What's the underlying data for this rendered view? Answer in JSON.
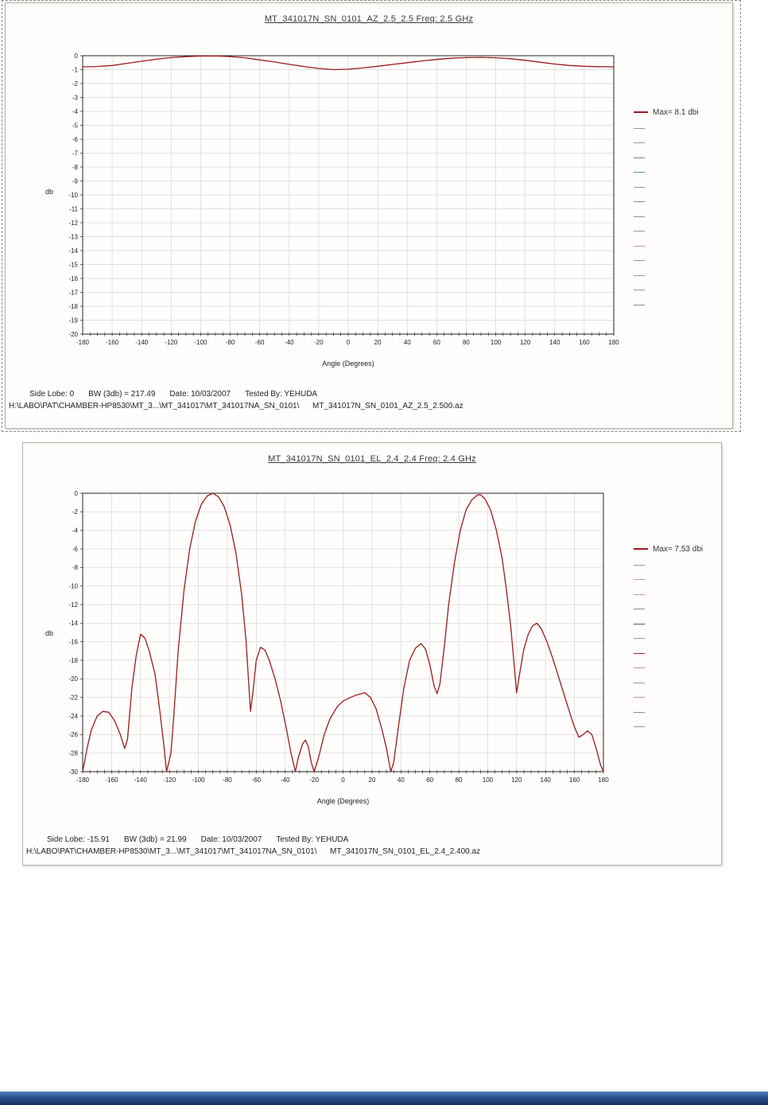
{
  "chart_data": [
    {
      "type": "line",
      "title": "MT_341017N_SN_0101_AZ_2.5_2.5 Freq: 2.5 GHz",
      "xlabel": "Angle (Degrees)",
      "ylabel": "db",
      "xlim": [
        -180,
        180
      ],
      "xstep": 20,
      "ylim": [
        -20,
        0
      ],
      "ystep": 1,
      "grid": true,
      "line_color": "#9b1b1b",
      "legend": {
        "label": "Max= 8.1 dbi",
        "color": "#9b1b1b",
        "extra_colors": [
          "#8899aa",
          "#999999",
          "#888888",
          "#5f93a8",
          "#999999",
          "#8a8a8a",
          "#7a9ab8",
          "#9a9a9a",
          "#c492b8",
          "#8899aa",
          "#7a9ab8",
          "#999999",
          "#888888"
        ]
      },
      "series": [
        {
          "name": "Max= 8.1 dbi",
          "points": [
            [
              -180,
              -0.8
            ],
            [
              -170,
              -0.78
            ],
            [
              -160,
              -0.7
            ],
            [
              -150,
              -0.55
            ],
            [
              -140,
              -0.4
            ],
            [
              -130,
              -0.25
            ],
            [
              -120,
              -0.14
            ],
            [
              -110,
              -0.07
            ],
            [
              -100,
              -0.03
            ],
            [
              -90,
              -0.02
            ],
            [
              -80,
              -0.06
            ],
            [
              -70,
              -0.15
            ],
            [
              -60,
              -0.3
            ],
            [
              -50,
              -0.45
            ],
            [
              -40,
              -0.62
            ],
            [
              -30,
              -0.78
            ],
            [
              -20,
              -0.92
            ],
            [
              -10,
              -1.0
            ],
            [
              0,
              -0.97
            ],
            [
              10,
              -0.88
            ],
            [
              20,
              -0.76
            ],
            [
              30,
              -0.63
            ],
            [
              40,
              -0.5
            ],
            [
              50,
              -0.38
            ],
            [
              60,
              -0.27
            ],
            [
              70,
              -0.18
            ],
            [
              80,
              -0.14
            ],
            [
              90,
              -0.12
            ],
            [
              100,
              -0.15
            ],
            [
              110,
              -0.22
            ],
            [
              120,
              -0.33
            ],
            [
              130,
              -0.47
            ],
            [
              140,
              -0.6
            ],
            [
              150,
              -0.7
            ],
            [
              160,
              -0.76
            ],
            [
              170,
              -0.79
            ],
            [
              180,
              -0.8
            ]
          ]
        }
      ],
      "footer": {
        "side_lobe": "Side Lobe:  0",
        "bw": "BW (3db) =  217.49",
        "date": "Date: 10/03/2007",
        "tested_by": "Tested By: YEHUDA",
        "path": "H:\\LABO\\PAT\\CHAMBER-HP8530\\MT_3...\\MT_341017\\MT_341017NA_SN_0101\\      MT_341017N_SN_0101_AZ_2.5_2.500.az"
      }
    },
    {
      "type": "line",
      "title": "MT_341017N_SN_0101_EL_2.4_2.4 Freq: 2.4 GHz",
      "xlabel": "Angle (Degrees)",
      "ylabel": "db",
      "xlim": [
        -180,
        180
      ],
      "xstep": 20,
      "ylim": [
        -30,
        0
      ],
      "ystep": 2,
      "grid": true,
      "line_color": "#9b1b1b",
      "legend": {
        "label": "Max= 7.53 dbi",
        "color": "#9b1b1b",
        "extra_colors": [
          "#9a9a9a",
          "#c08cc0",
          "#c492b8",
          "#8a8a8a",
          "#555555",
          "#999999",
          "#a02020",
          "#c492b8",
          "#9a9a9a",
          "#b890c0",
          "#8a8a8a",
          "#999999"
        ]
      },
      "series": [
        {
          "name": "Max= 7.53 dbi",
          "points": [
            [
              -180,
              -30
            ],
            [
              -177,
              -27.5
            ],
            [
              -174,
              -25.5
            ],
            [
              -170,
              -24
            ],
            [
              -166,
              -23.5
            ],
            [
              -162,
              -23.6
            ],
            [
              -158,
              -24.5
            ],
            [
              -154,
              -26
            ],
            [
              -151,
              -27.5
            ],
            [
              -149,
              -26.5
            ],
            [
              -146,
              -21
            ],
            [
              -143,
              -17.5
            ],
            [
              -140,
              -15.2
            ],
            [
              -137,
              -15.6
            ],
            [
              -134,
              -17
            ],
            [
              -130,
              -19.5
            ],
            [
              -127,
              -23
            ],
            [
              -124,
              -27
            ],
            [
              -122,
              -30
            ],
            [
              -119,
              -28
            ],
            [
              -117,
              -24
            ],
            [
              -114,
              -17
            ],
            [
              -110,
              -10.5
            ],
            [
              -106,
              -6
            ],
            [
              -102,
              -3
            ],
            [
              -98,
              -1.2
            ],
            [
              -94,
              -0.3
            ],
            [
              -90,
              0
            ],
            [
              -86,
              -0.4
            ],
            [
              -82,
              -1.5
            ],
            [
              -78,
              -3.5
            ],
            [
              -74,
              -6.5
            ],
            [
              -70,
              -11
            ],
            [
              -67,
              -16
            ],
            [
              -65,
              -21
            ],
            [
              -64,
              -23.5
            ],
            [
              -62,
              -21
            ],
            [
              -60,
              -18
            ],
            [
              -57,
              -16.6
            ],
            [
              -54,
              -16.9
            ],
            [
              -51,
              -18
            ],
            [
              -47,
              -20
            ],
            [
              -43,
              -22.5
            ],
            [
              -39,
              -25.5
            ],
            [
              -36,
              -28
            ],
            [
              -33,
              -30
            ],
            [
              -31,
              -28.5
            ],
            [
              -28,
              -27
            ],
            [
              -26,
              -26.6
            ],
            [
              -24,
              -27.3
            ],
            [
              -22,
              -29
            ],
            [
              -20,
              -30
            ],
            [
              -17,
              -28.5
            ],
            [
              -13,
              -26
            ],
            [
              -9,
              -24.3
            ],
            [
              -4,
              -23
            ],
            [
              0,
              -22.4
            ],
            [
              5,
              -22
            ],
            [
              10,
              -21.7
            ],
            [
              15,
              -21.5
            ],
            [
              19,
              -22
            ],
            [
              23,
              -23.3
            ],
            [
              27,
              -25.5
            ],
            [
              30,
              -27.5
            ],
            [
              33,
              -30
            ],
            [
              35,
              -29
            ],
            [
              38,
              -25.5
            ],
            [
              42,
              -21
            ],
            [
              46,
              -18
            ],
            [
              50,
              -16.7
            ],
            [
              54,
              -16.2
            ],
            [
              57,
              -16.8
            ],
            [
              60,
              -18.5
            ],
            [
              63,
              -20.8
            ],
            [
              65,
              -21.6
            ],
            [
              67,
              -20.5
            ],
            [
              70,
              -16.5
            ],
            [
              73,
              -12
            ],
            [
              77,
              -7.5
            ],
            [
              81,
              -4
            ],
            [
              85,
              -1.8
            ],
            [
              89,
              -0.7
            ],
            [
              93,
              -0.2
            ],
            [
              95,
              -0.15
            ],
            [
              98,
              -0.6
            ],
            [
              102,
              -1.8
            ],
            [
              106,
              -4
            ],
            [
              110,
              -7
            ],
            [
              113,
              -10.5
            ],
            [
              116,
              -14.5
            ],
            [
              118,
              -18
            ],
            [
              120,
              -21.5
            ],
            [
              122,
              -19.5
            ],
            [
              125,
              -16.8
            ],
            [
              128,
              -15.2
            ],
            [
              131,
              -14.3
            ],
            [
              134,
              -14
            ],
            [
              137,
              -14.6
            ],
            [
              141,
              -16
            ],
            [
              145,
              -17.8
            ],
            [
              149,
              -19.8
            ],
            [
              153,
              -21.8
            ],
            [
              157,
              -23.8
            ],
            [
              160,
              -25.2
            ],
            [
              163,
              -26.3
            ],
            [
              166,
              -26
            ],
            [
              169,
              -25.6
            ],
            [
              172,
              -26
            ],
            [
              175,
              -27.5
            ],
            [
              178,
              -29.3
            ],
            [
              180,
              -30
            ]
          ]
        }
      ],
      "footer": {
        "side_lobe": "Side Lobe: -15.91",
        "bw": "BW (3db) =  21.99",
        "date": "Date: 10/03/2007",
        "tested_by": "Tested By: YEHUDA",
        "path": "H:\\LABO\\PAT\\CHAMBER-HP8530\\MT_3...\\MT_341017\\MT_341017NA_SN_0101\\      MT_341017N_SN_0101_EL_2.4_2.400.az"
      }
    }
  ]
}
